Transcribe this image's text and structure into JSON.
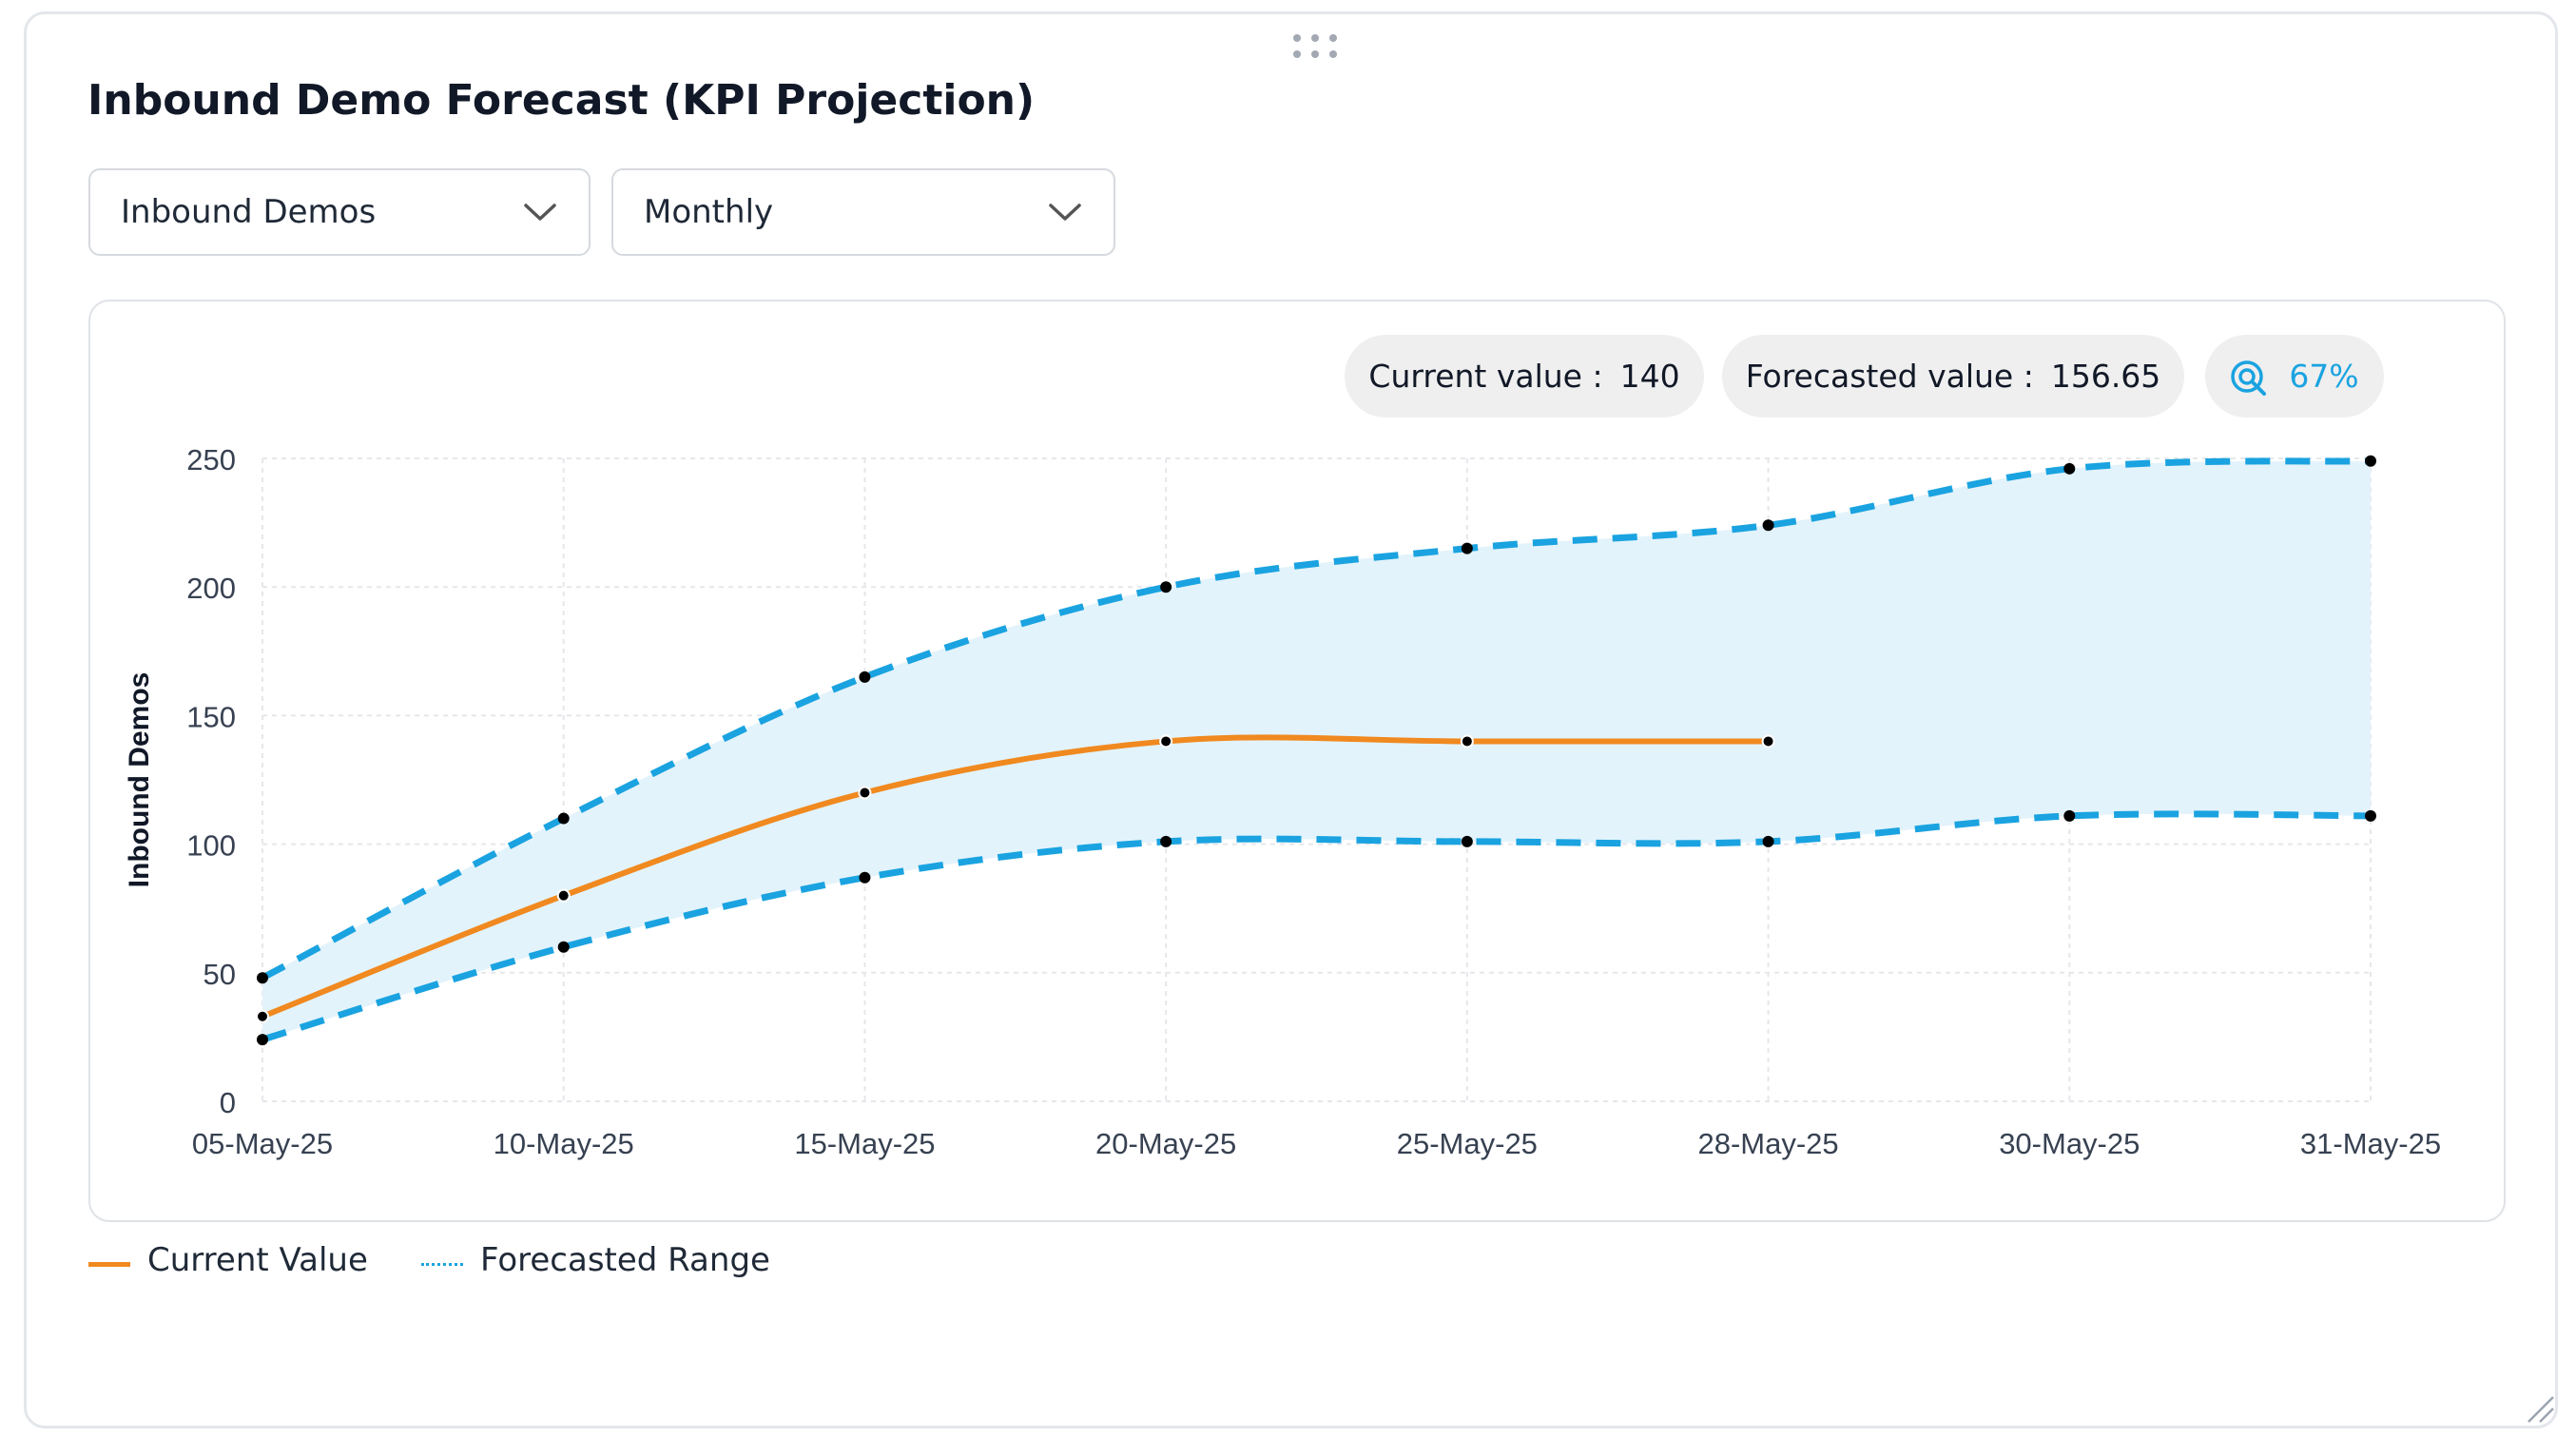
{
  "widget": {
    "title": "Inbound Demo Forecast (KPI Projection)"
  },
  "filters": {
    "metric": {
      "selected": "Inbound Demos"
    },
    "period": {
      "selected": "Monthly"
    }
  },
  "summary": {
    "current_label": "Current value :",
    "current_value": "140",
    "forecast_label": "Forecasted value :",
    "forecast_value": "156.65",
    "confidence": "67%"
  },
  "legend": {
    "current": "Current Value",
    "forecast": "Forecasted Range"
  },
  "icons": {
    "drag": "drag-handle-icon",
    "dropdown": "chevron-down-icon",
    "confidence": "target-icon",
    "resize": "resize-grip-icon"
  },
  "colors": {
    "current_line": "#f0891f",
    "forecast_line": "#1aa3e0",
    "forecast_fill": "#e3f3fb",
    "point": "#000000",
    "grid": "#e5e7eb"
  },
  "chart_data": {
    "type": "line",
    "title": "",
    "xlabel": "",
    "ylabel": "Inbound Demos",
    "ylim": [
      0,
      250
    ],
    "yticks": [
      0,
      50,
      100,
      150,
      200,
      250
    ],
    "categories": [
      "05-May-25",
      "10-May-25",
      "15-May-25",
      "20-May-25",
      "25-May-25",
      "28-May-25",
      "30-May-25",
      "31-May-25"
    ],
    "grid": true,
    "legend_position": "bottom-left",
    "series": [
      {
        "name": "Current Value",
        "style": "solid",
        "values": [
          33,
          80,
          120,
          140,
          140,
          140,
          null,
          null
        ]
      },
      {
        "name": "Forecasted Range",
        "style": "dashed",
        "role": "upper",
        "values": [
          48,
          110,
          165,
          200,
          215,
          224,
          246,
          249
        ]
      },
      {
        "name": "Forecasted Range",
        "style": "dashed",
        "role": "lower",
        "values": [
          24,
          60,
          87,
          101,
          101,
          101,
          111,
          111
        ]
      }
    ]
  }
}
